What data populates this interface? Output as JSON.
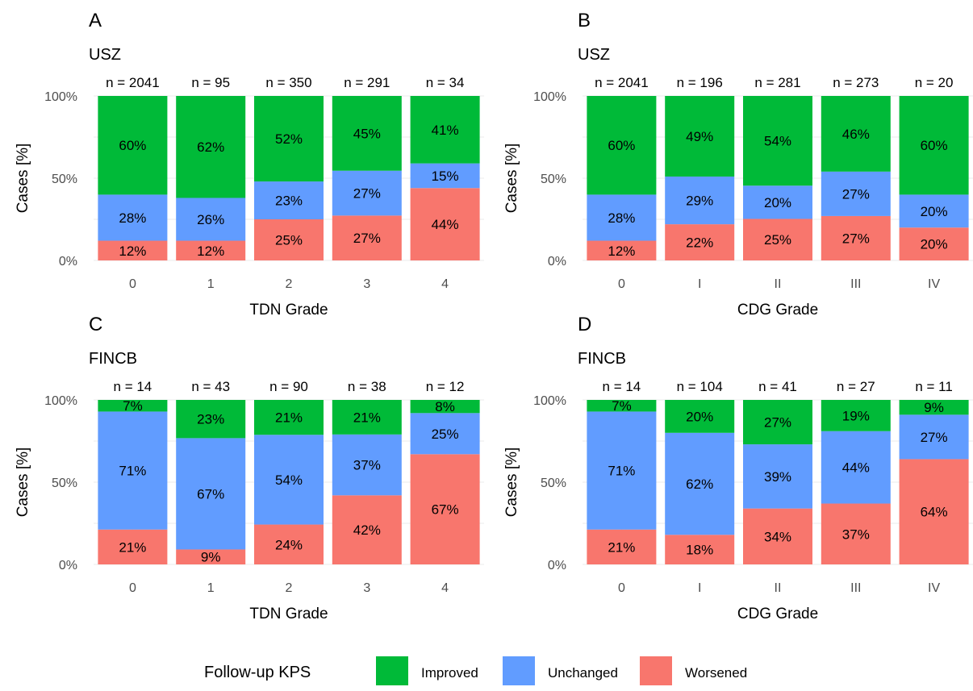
{
  "legend": {
    "title": "Follow-up KPS",
    "items": [
      {
        "label": "Improved",
        "color": "#00BA38"
      },
      {
        "label": "Unchanged",
        "color": "#619CFF"
      },
      {
        "label": "Worsened",
        "color": "#F8766D"
      }
    ]
  },
  "chart_data": [
    {
      "type": "bar",
      "stacked": true,
      "panel": "A",
      "subtitle": "USZ",
      "xlabel": "TDN Grade",
      "ylabel": "Cases [%]",
      "ylim": [
        0,
        100
      ],
      "yticks": [
        "0%",
        "50%",
        "100%"
      ],
      "categories": [
        "0",
        "1",
        "2",
        "3",
        "4"
      ],
      "n_labels": [
        "n = 2041",
        "n = 95",
        "n = 350",
        "n = 291",
        "n = 34"
      ],
      "series": [
        {
          "name": "Worsened",
          "values": [
            12,
            12,
            25,
            27,
            44
          ]
        },
        {
          "name": "Unchanged",
          "values": [
            28,
            26,
            23,
            27,
            15
          ]
        },
        {
          "name": "Improved",
          "values": [
            60,
            62,
            52,
            45,
            41
          ]
        }
      ]
    },
    {
      "type": "bar",
      "stacked": true,
      "panel": "B",
      "subtitle": "USZ",
      "xlabel": "CDG Grade",
      "ylabel": "Cases [%]",
      "ylim": [
        0,
        100
      ],
      "yticks": [
        "0%",
        "50%",
        "100%"
      ],
      "categories": [
        "0",
        "I",
        "II",
        "III",
        "IV"
      ],
      "n_labels": [
        "n = 2041",
        "n = 196",
        "n = 281",
        "n = 273",
        "n = 20"
      ],
      "series": [
        {
          "name": "Worsened",
          "values": [
            12,
            22,
            25,
            27,
            20
          ]
        },
        {
          "name": "Unchanged",
          "values": [
            28,
            29,
            20,
            27,
            20
          ]
        },
        {
          "name": "Improved",
          "values": [
            60,
            49,
            54,
            46,
            60
          ]
        }
      ]
    },
    {
      "type": "bar",
      "stacked": true,
      "panel": "C",
      "subtitle": "FINCB",
      "xlabel": "TDN Grade",
      "ylabel": "Cases [%]",
      "ylim": [
        0,
        100
      ],
      "yticks": [
        "0%",
        "50%",
        "100%"
      ],
      "categories": [
        "0",
        "1",
        "2",
        "3",
        "4"
      ],
      "n_labels": [
        "n = 14",
        "n = 43",
        "n = 90",
        "n = 38",
        "n = 12"
      ],
      "series": [
        {
          "name": "Worsened",
          "values": [
            21,
            9,
            24,
            42,
            67
          ]
        },
        {
          "name": "Unchanged",
          "values": [
            71,
            67,
            54,
            37,
            25
          ]
        },
        {
          "name": "Improved",
          "values": [
            7,
            23,
            21,
            21,
            8
          ]
        }
      ]
    },
    {
      "type": "bar",
      "stacked": true,
      "panel": "D",
      "subtitle": "FINCB",
      "xlabel": "CDG Grade",
      "ylabel": "Cases [%]",
      "ylim": [
        0,
        100
      ],
      "yticks": [
        "0%",
        "50%",
        "100%"
      ],
      "categories": [
        "0",
        "I",
        "II",
        "III",
        "IV"
      ],
      "n_labels": [
        "n = 14",
        "n = 104",
        "n = 41",
        "n = 27",
        "n = 11"
      ],
      "series": [
        {
          "name": "Worsened",
          "values": [
            21,
            18,
            34,
            37,
            64
          ]
        },
        {
          "name": "Unchanged",
          "values": [
            71,
            62,
            39,
            44,
            27
          ]
        },
        {
          "name": "Improved",
          "values": [
            7,
            20,
            27,
            19,
            9
          ]
        }
      ]
    }
  ]
}
